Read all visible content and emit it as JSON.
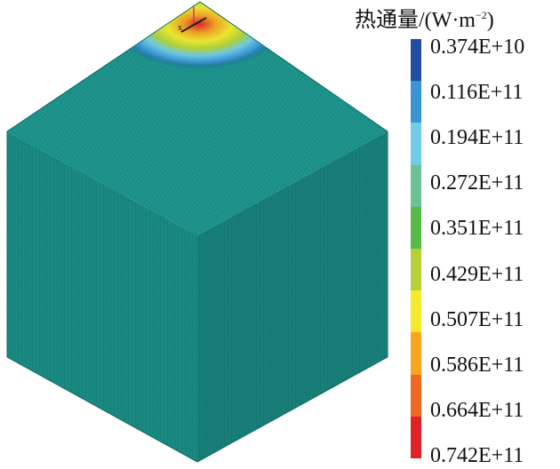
{
  "legend": {
    "title_prefix": "热通量",
    "title_unit": "/(W·m",
    "title_exp": "−2",
    "title_close": ")",
    "labels": [
      "0.374E+10",
      "0.116E+11",
      "0.194E+11",
      "0.272E+11",
      "0.351E+11",
      "0.429E+11",
      "0.507E+11",
      "0.586E+11",
      "0.664E+11",
      "0.742E+11"
    ],
    "colors": [
      "#1f4ea3",
      "#3a94d4",
      "#72cbe6",
      "#6cc195",
      "#57b947",
      "#b5d336",
      "#f4ea2b",
      "#f8a51f",
      "#ee6a22",
      "#e02227"
    ]
  },
  "model": {
    "face_color": "#1b8e86",
    "grid_color": "#0d5e5a",
    "shade_top": "#1e958d",
    "shade_left": "#1a8a83",
    "shade_right": "#187f79"
  },
  "axes": {
    "x_label": "x"
  }
}
